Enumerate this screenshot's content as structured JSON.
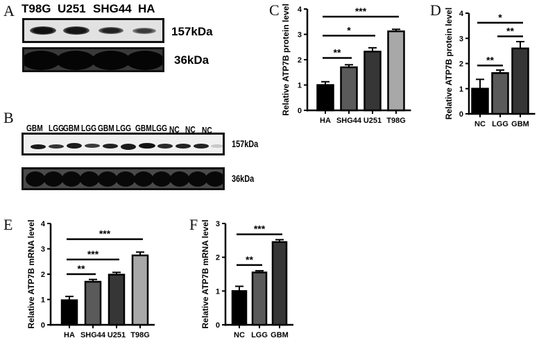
{
  "panels": {
    "A": {
      "letter": "A",
      "lanes": [
        "T98G",
        "U251",
        "SHG44",
        "HA"
      ],
      "bands": [
        {
          "label": "157kDa",
          "intensity": [
            0.95,
            0.88,
            0.75,
            0.55
          ]
        },
        {
          "label": "36kDa",
          "intensity": [
            1.0,
            1.0,
            1.0,
            1.0
          ]
        }
      ]
    },
    "B": {
      "letter": "B",
      "lanes": [
        "GBM",
        "LGG",
        "GBM",
        "LGG",
        "GBM",
        "LGG",
        "GBM",
        "LGG",
        "NC",
        "NC",
        "NC"
      ],
      "bands": [
        {
          "label": "157kDa",
          "intensity": [
            0.9,
            0.75,
            0.85,
            0.7,
            0.85,
            0.9,
            0.95,
            0.8,
            0.85,
            0.85,
            0.2
          ]
        },
        {
          "label": "36kDa",
          "intensity": [
            1,
            1,
            1,
            1,
            1,
            1,
            1,
            1,
            1,
            1,
            1
          ]
        }
      ]
    },
    "C": {
      "letter": "C"
    },
    "D": {
      "letter": "D"
    },
    "E": {
      "letter": "E"
    },
    "F": {
      "letter": "F"
    }
  },
  "chart_data": [
    {
      "panel": "C",
      "type": "bar",
      "title": "",
      "xlabel": "",
      "ylabel": "Relative ATP7B protein level",
      "ylim": [
        0,
        4
      ],
      "yticks": [
        0,
        1,
        2,
        3,
        4
      ],
      "grid": false,
      "categories": [
        "HA",
        "SHG44",
        "U251",
        "T98G"
      ],
      "values": [
        1.0,
        1.7,
        2.32,
        3.12
      ],
      "errors": [
        0.13,
        0.1,
        0.15,
        0.08
      ],
      "bar_colors": [
        "#000000",
        "#5a5a5a",
        "#363636",
        "#a8a8a8"
      ],
      "significance": [
        {
          "from": "HA",
          "to": "SHG44",
          "label": "**",
          "y": 2.07
        },
        {
          "from": "HA",
          "to": "U251",
          "label": "*",
          "y": 2.95
        },
        {
          "from": "HA",
          "to": "T98G",
          "label": "***",
          "y": 3.7
        }
      ]
    },
    {
      "panel": "D",
      "type": "bar",
      "title": "",
      "xlabel": "",
      "ylabel": "Relative ATP7B protein level",
      "ylim": [
        0,
        4
      ],
      "yticks": [
        0,
        1,
        2,
        3,
        4
      ],
      "grid": false,
      "categories": [
        "NC",
        "LGG",
        "GBM"
      ],
      "values": [
        1.0,
        1.62,
        2.6
      ],
      "errors": [
        0.37,
        0.12,
        0.27
      ],
      "bar_colors": [
        "#000000",
        "#5a5a5a",
        "#363636"
      ],
      "significance": [
        {
          "from": "NC",
          "to": "LGG",
          "label": "**",
          "y": 1.92
        },
        {
          "from": "LGG",
          "to": "GBM",
          "label": "**",
          "y": 3.08
        },
        {
          "from": "NC",
          "to": "GBM",
          "label": "*",
          "y": 3.62
        }
      ]
    },
    {
      "panel": "E",
      "type": "bar",
      "title": "",
      "xlabel": "",
      "ylabel": "Relative ATP7B mRNA level",
      "ylim": [
        0,
        4
      ],
      "yticks": [
        0,
        1,
        2,
        3,
        4
      ],
      "grid": false,
      "categories": [
        "HA",
        "SHG44",
        "U251",
        "T98G"
      ],
      "values": [
        0.97,
        1.7,
        1.98,
        2.74
      ],
      "errors": [
        0.15,
        0.09,
        0.09,
        0.13
      ],
      "bar_colors": [
        "#000000",
        "#5a5a5a",
        "#363636",
        "#a8a8a8"
      ],
      "significance": [
        {
          "from": "HA",
          "to": "SHG44",
          "label": "**",
          "y": 2.0
        },
        {
          "from": "HA",
          "to": "U251",
          "label": "***",
          "y": 2.58
        },
        {
          "from": "HA",
          "to": "T98G",
          "label": "***",
          "y": 3.38
        }
      ]
    },
    {
      "panel": "F",
      "type": "bar",
      "title": "",
      "xlabel": "",
      "ylabel": "Relative ATP7B mRNA level",
      "ylim": [
        0,
        3
      ],
      "yticks": [
        0,
        1,
        2,
        3
      ],
      "grid": false,
      "categories": [
        "NC",
        "LGG",
        "GBM"
      ],
      "values": [
        1.0,
        1.55,
        2.45
      ],
      "errors": [
        0.14,
        0.05,
        0.07
      ],
      "bar_colors": [
        "#000000",
        "#5a5a5a",
        "#363636"
      ],
      "significance": [
        {
          "from": "NC",
          "to": "LGG",
          "label": "**",
          "y": 1.77
        },
        {
          "from": "NC",
          "to": "GBM",
          "label": "***",
          "y": 2.68
        }
      ]
    }
  ]
}
